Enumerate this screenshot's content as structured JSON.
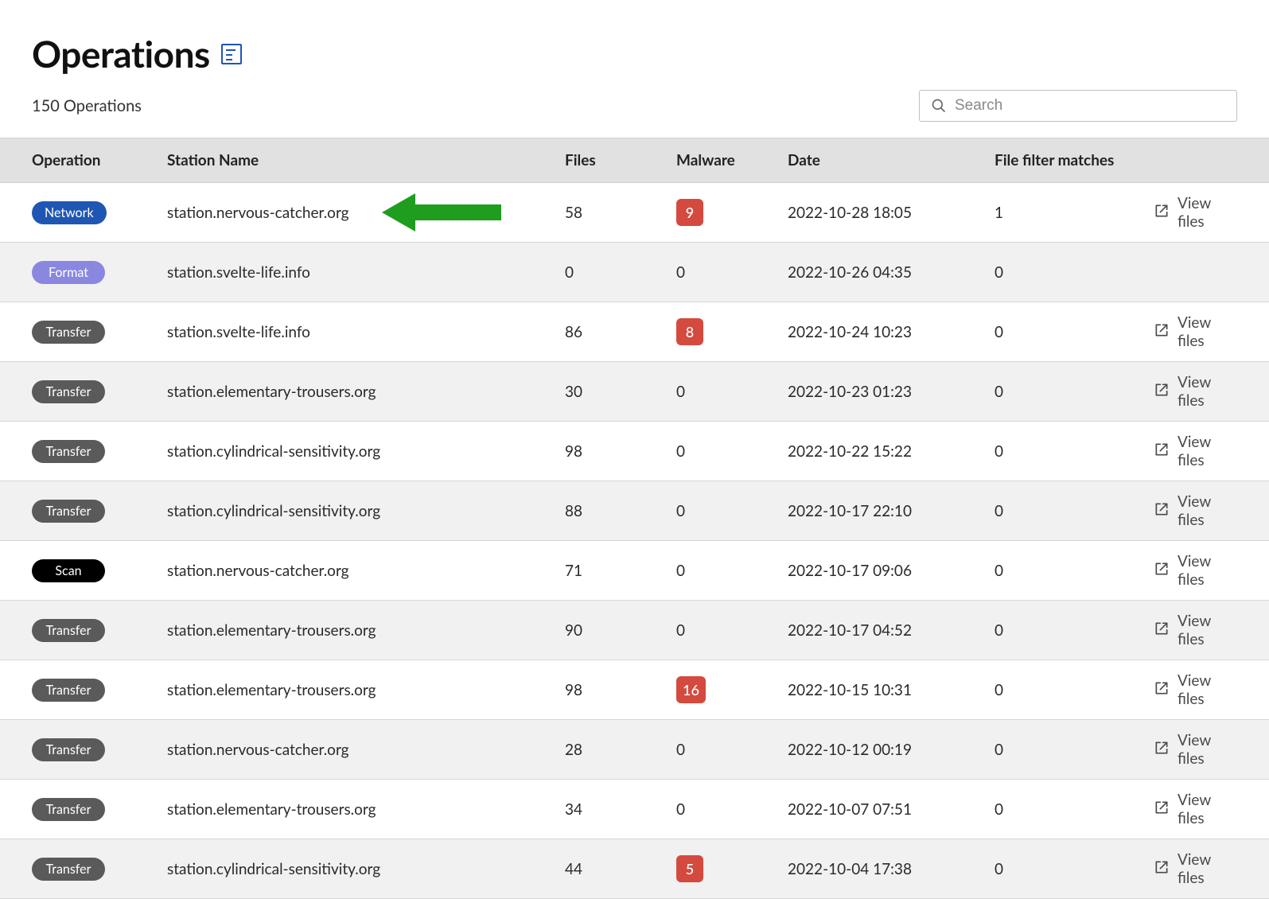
{
  "header": {
    "title": "Operations",
    "count_text": "150 Operations",
    "search_placeholder": "Search"
  },
  "colors": {
    "pill_network": "#1f56b3",
    "pill_format": "#8a87e0",
    "pill_transfer": "#5a5a5a",
    "pill_scan": "#000000",
    "malware_badge": "#d44a3f",
    "arrow": "#1f9d1f",
    "header_bg": "#e1e1e1",
    "row_alt_bg": "#f1f1f1"
  },
  "columns": {
    "operation": "Operation",
    "station": "Station Name",
    "files": "Files",
    "malware": "Malware",
    "date": "Date",
    "filter": "File filter matches"
  },
  "view_files_label": "View files",
  "rows": [
    {
      "op": "Network",
      "op_color_key": "pill_network",
      "station": "station.nervous-catcher.org",
      "files": "58",
      "malware": "9",
      "date": "2022-10-28 18:05",
      "filter": "1",
      "view": true,
      "arrow": true
    },
    {
      "op": "Format",
      "op_color_key": "pill_format",
      "station": "station.svelte-life.info",
      "files": "0",
      "malware": "0",
      "date": "2022-10-26 04:35",
      "filter": "0",
      "view": false,
      "arrow": false
    },
    {
      "op": "Transfer",
      "op_color_key": "pill_transfer",
      "station": "station.svelte-life.info",
      "files": "86",
      "malware": "8",
      "date": "2022-10-24 10:23",
      "filter": "0",
      "view": true,
      "arrow": false
    },
    {
      "op": "Transfer",
      "op_color_key": "pill_transfer",
      "station": "station.elementary-trousers.org",
      "files": "30",
      "malware": "0",
      "date": "2022-10-23 01:23",
      "filter": "0",
      "view": true,
      "arrow": false
    },
    {
      "op": "Transfer",
      "op_color_key": "pill_transfer",
      "station": "station.cylindrical-sensitivity.org",
      "files": "98",
      "malware": "0",
      "date": "2022-10-22 15:22",
      "filter": "0",
      "view": true,
      "arrow": false
    },
    {
      "op": "Transfer",
      "op_color_key": "pill_transfer",
      "station": "station.cylindrical-sensitivity.org",
      "files": "88",
      "malware": "0",
      "date": "2022-10-17 22:10",
      "filter": "0",
      "view": true,
      "arrow": false
    },
    {
      "op": "Scan",
      "op_color_key": "pill_scan",
      "station": "station.nervous-catcher.org",
      "files": "71",
      "malware": "0",
      "date": "2022-10-17 09:06",
      "filter": "0",
      "view": true,
      "arrow": false
    },
    {
      "op": "Transfer",
      "op_color_key": "pill_transfer",
      "station": "station.elementary-trousers.org",
      "files": "90",
      "malware": "0",
      "date": "2022-10-17 04:52",
      "filter": "0",
      "view": true,
      "arrow": false
    },
    {
      "op": "Transfer",
      "op_color_key": "pill_transfer",
      "station": "station.elementary-trousers.org",
      "files": "98",
      "malware": "16",
      "date": "2022-10-15 10:31",
      "filter": "0",
      "view": true,
      "arrow": false
    },
    {
      "op": "Transfer",
      "op_color_key": "pill_transfer",
      "station": "station.nervous-catcher.org",
      "files": "28",
      "malware": "0",
      "date": "2022-10-12 00:19",
      "filter": "0",
      "view": true,
      "arrow": false
    },
    {
      "op": "Transfer",
      "op_color_key": "pill_transfer",
      "station": "station.elementary-trousers.org",
      "files": "34",
      "malware": "0",
      "date": "2022-10-07 07:51",
      "filter": "0",
      "view": true,
      "arrow": false
    },
    {
      "op": "Transfer",
      "op_color_key": "pill_transfer",
      "station": "station.cylindrical-sensitivity.org",
      "files": "44",
      "malware": "5",
      "date": "2022-10-04 17:38",
      "filter": "0",
      "view": true,
      "arrow": false
    }
  ]
}
